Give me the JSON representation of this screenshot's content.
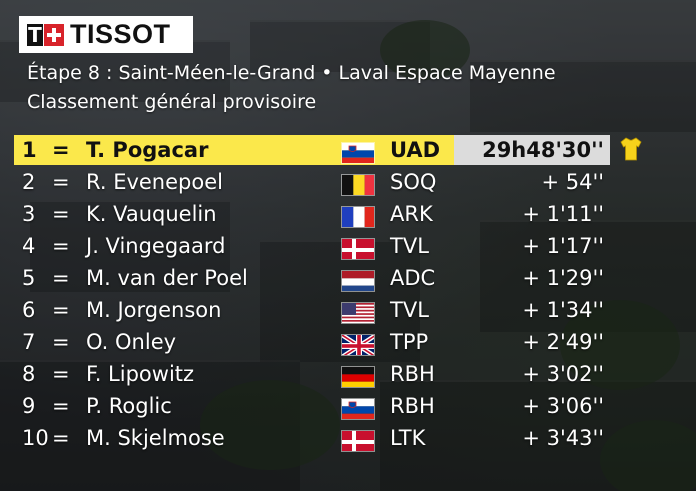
{
  "brand": {
    "logo_text": "TISSOT"
  },
  "header": {
    "stage": "Étape 8 : Saint-Méen-le-Grand • Laval Espace Mayenne",
    "classification": "Classement général provisoire"
  },
  "colors": {
    "leader_highlight": "#fbe84b",
    "time_box": "#dcdcdc",
    "jersey": "#f6d21b"
  },
  "standings": [
    {
      "rank": "1",
      "change": "=",
      "name": "T. Pogacar",
      "flag": "slovenia-flag",
      "team": "UAD",
      "time": "29h48'30''",
      "leader": true,
      "jersey": "yellow-jersey-icon"
    },
    {
      "rank": "2",
      "change": "=",
      "name": "R. Evenepoel",
      "flag": "belgium-flag",
      "team": "SOQ",
      "time": "+  54''"
    },
    {
      "rank": "3",
      "change": "=",
      "name": "K. Vauquelin",
      "flag": "france-flag",
      "team": "ARK",
      "time": "+  1'11''"
    },
    {
      "rank": "4",
      "change": "=",
      "name": "J. Vingegaard",
      "flag": "denmark-flag",
      "team": "TVL",
      "time": "+  1'17''"
    },
    {
      "rank": "5",
      "change": "=",
      "name": "M. van der Poel",
      "flag": "netherlands-flag",
      "team": "ADC",
      "time": "+  1'29''"
    },
    {
      "rank": "6",
      "change": "=",
      "name": "M. Jorgenson",
      "flag": "usa-flag",
      "team": "TVL",
      "time": "+  1'34''"
    },
    {
      "rank": "7",
      "change": "=",
      "name": "O. Onley",
      "flag": "uk-flag",
      "team": "TPP",
      "time": "+  2'49''"
    },
    {
      "rank": "8",
      "change": "=",
      "name": "F. Lipowitz",
      "flag": "germany-flag",
      "team": "RBH",
      "time": "+  3'02''"
    },
    {
      "rank": "9",
      "change": "=",
      "name": "P. Roglic",
      "flag": "slovenia-flag",
      "team": "RBH",
      "time": "+  3'06''"
    },
    {
      "rank": "10",
      "change": "=",
      "name": "M. Skjelmose",
      "flag": "denmark-flag",
      "team": "LTK",
      "time": "+  3'43''"
    }
  ]
}
